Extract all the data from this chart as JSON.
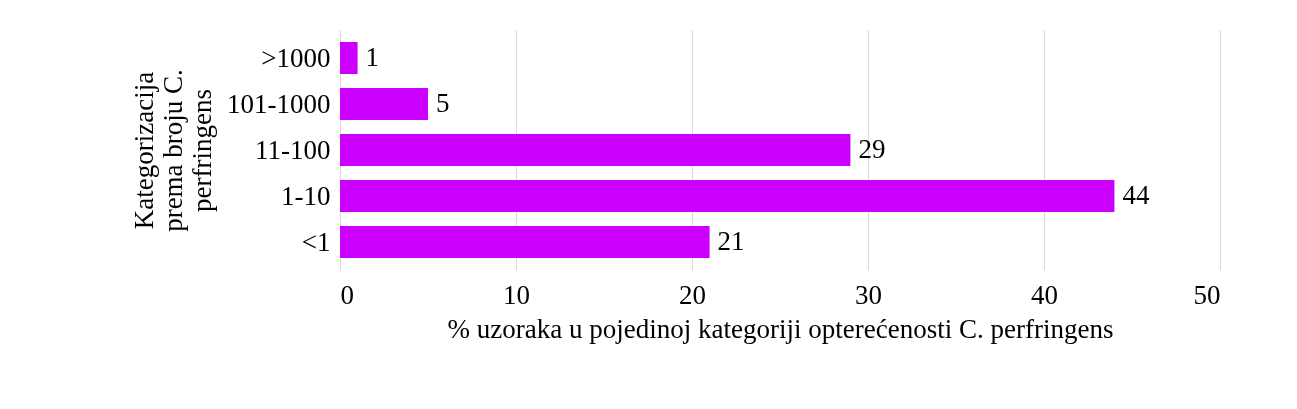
{
  "chart_data": {
    "type": "bar",
    "orientation": "horizontal",
    "categories": [
      ">1000",
      "101-1000",
      "11-100",
      "1-10",
      "<1"
    ],
    "values": [
      1,
      5,
      29,
      44,
      21
    ],
    "color": "#cc00ff",
    "xlabel": "% uzoraka u pojedinoj kategoriji opterećenosti C. perfringens",
    "ylabel": "Kategorizacija prema broju C. perfringens",
    "xlim": [
      0,
      50
    ],
    "xticks": [
      0,
      10,
      20,
      30,
      40,
      50
    ],
    "grid": "x",
    "data_labels": true
  }
}
